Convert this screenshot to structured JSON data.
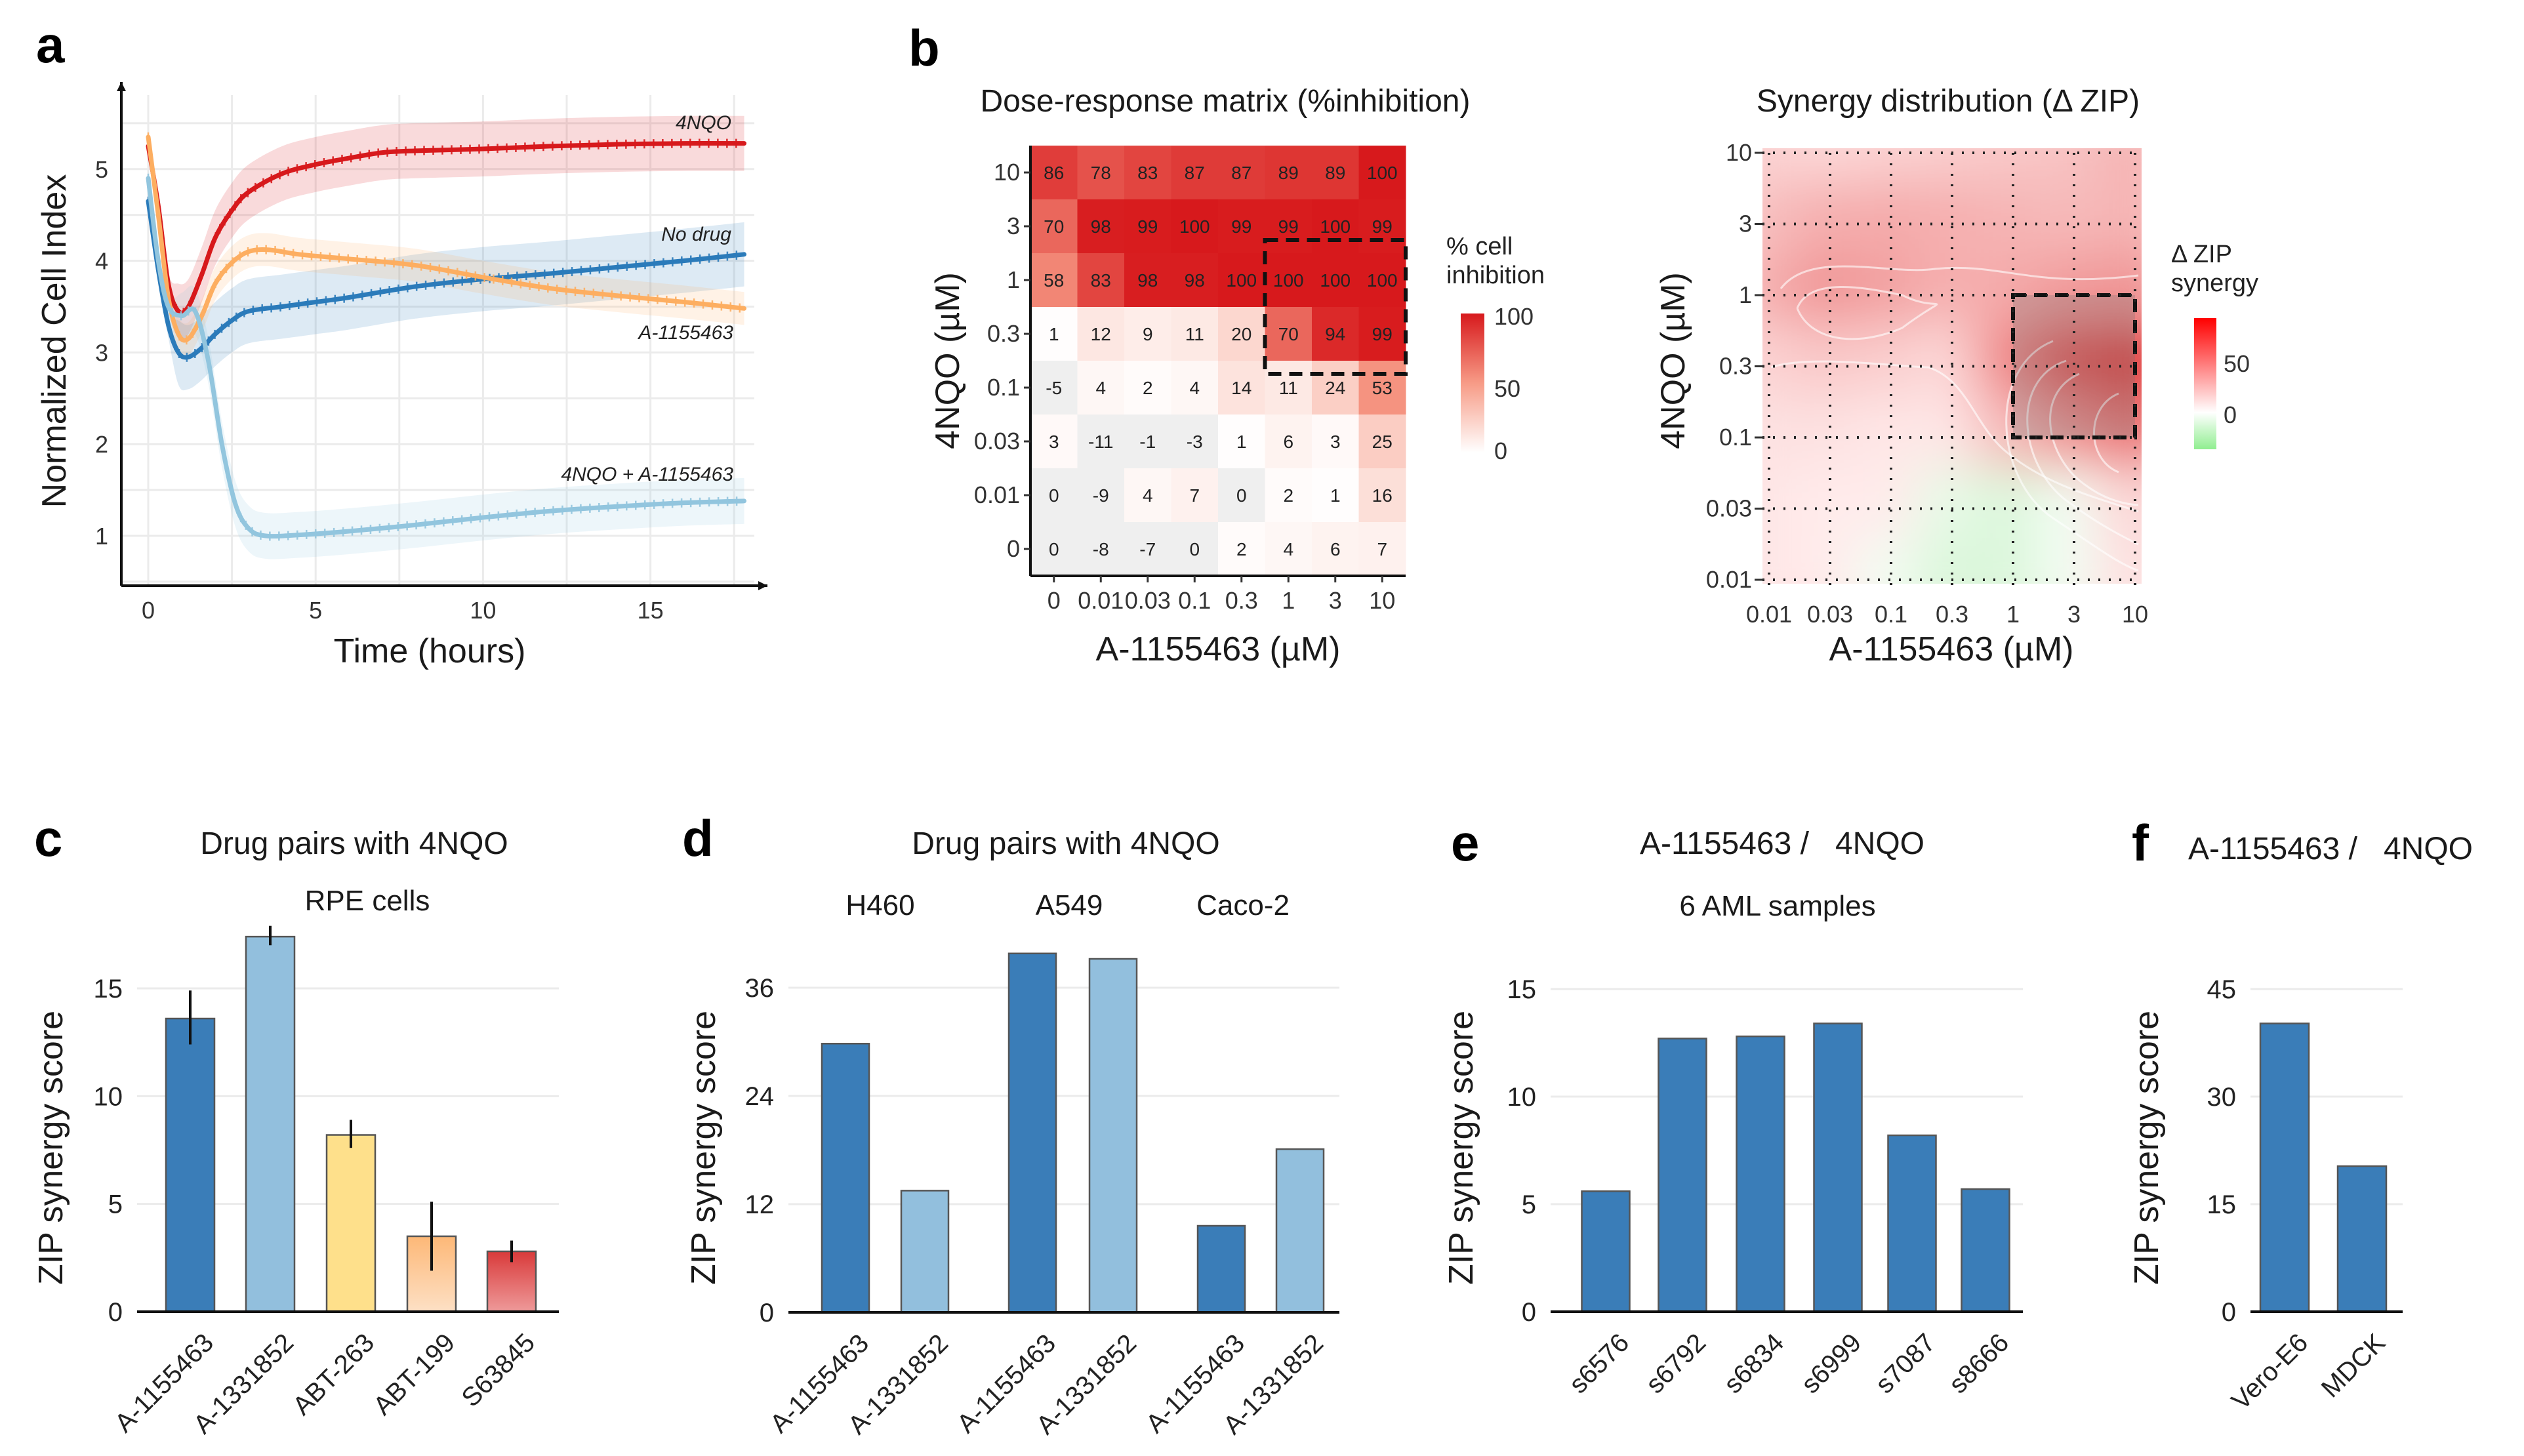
{
  "panels": {
    "a": {
      "letter": "a"
    },
    "b": {
      "letter": "b"
    },
    "c": {
      "letter": "c"
    },
    "d": {
      "letter": "d"
    },
    "e": {
      "letter": "e"
    },
    "f": {
      "letter": "f"
    }
  },
  "legends": {
    "inhibition": {
      "title_line1": "% cell",
      "title_line2": "inhibition",
      "ticks": [
        "100",
        "50",
        "0"
      ],
      "max_color": "#d7191c",
      "min_color": "#ffffff"
    },
    "synergy": {
      "title_line1": "Δ ZIP",
      "title_line2": "synergy",
      "ticks": [
        "50",
        "0"
      ],
      "max_color": "#ff0000",
      "min_color": "#90ee90"
    }
  },
  "chart_data": [
    {
      "id": "a",
      "type": "line",
      "title": "",
      "xlabel": "Time (hours)",
      "ylabel": "Normalized Cell Index",
      "xlim": [
        -0.7,
        18.5
      ],
      "ylim": [
        0.45,
        5.9
      ],
      "xticks": [
        0,
        5,
        10,
        15
      ],
      "yticks": [
        1,
        2,
        3,
        4,
        5
      ],
      "grid": true,
      "legend": "inline-labels",
      "series": [
        {
          "name": "4NQO",
          "color": "#d7191c",
          "x": [
            0,
            0.3,
            0.6,
            0.9,
            1.2,
            1.6,
            2.0,
            2.5,
            3,
            4,
            5,
            6,
            7,
            8,
            10,
            12,
            14,
            16,
            17.8
          ],
          "y": [
            5.25,
            4.6,
            3.75,
            3.45,
            3.5,
            3.85,
            4.25,
            4.55,
            4.75,
            4.95,
            5.05,
            5.12,
            5.18,
            5.2,
            5.22,
            5.25,
            5.27,
            5.28,
            5.28
          ],
          "band": 0.3
        },
        {
          "name": "No drug",
          "color": "#2b7bba",
          "x": [
            0,
            0.3,
            0.6,
            0.9,
            1.2,
            1.6,
            2.0,
            2.5,
            3,
            4,
            5,
            6,
            8,
            10,
            12,
            14,
            16,
            17.8
          ],
          "y": [
            4.65,
            3.9,
            3.3,
            3.0,
            2.95,
            3.05,
            3.2,
            3.35,
            3.45,
            3.5,
            3.55,
            3.6,
            3.72,
            3.8,
            3.86,
            3.93,
            4.0,
            4.07
          ],
          "band": 0.35
        },
        {
          "name": "A-1155463",
          "color": "#fdae61",
          "x": [
            0,
            0.3,
            0.6,
            0.9,
            1.2,
            1.6,
            2.0,
            2.5,
            3,
            3.6,
            4.5,
            6,
            8,
            10,
            12,
            14,
            16,
            17.8
          ],
          "y": [
            5.35,
            4.5,
            3.6,
            3.2,
            3.15,
            3.4,
            3.75,
            3.98,
            4.1,
            4.12,
            4.07,
            4.02,
            3.95,
            3.82,
            3.7,
            3.62,
            3.55,
            3.48
          ],
          "band": 0.18
        },
        {
          "name": "4NQO + A-1155463",
          "color": "#92c5de",
          "x": [
            0,
            0.3,
            0.6,
            1.0,
            1.4,
            1.8,
            2.2,
            2.6,
            3.0,
            3.5,
            4.5,
            6,
            8,
            10,
            12,
            14,
            16,
            17.8
          ],
          "y": [
            4.9,
            4.0,
            3.5,
            3.4,
            3.45,
            2.9,
            2.0,
            1.35,
            1.08,
            1.0,
            1.01,
            1.05,
            1.12,
            1.2,
            1.27,
            1.32,
            1.36,
            1.38
          ],
          "band": 0.25
        }
      ],
      "annotations": [
        "4NQO",
        "No drug",
        "A-1155463",
        "4NQO + A-1155463"
      ]
    },
    {
      "id": "b1",
      "type": "heatmap",
      "title": "Dose-response matrix (%inhibition)",
      "xlabel": "A-1155463 (µM)",
      "ylabel": "4NQO (µM)",
      "x_categories": [
        "0",
        "0.01",
        "0.03",
        "0.1",
        "0.3",
        "1",
        "3",
        "10"
      ],
      "y_categories": [
        "10",
        "3",
        "1",
        "0.3",
        "0.1",
        "0.03",
        "0.01",
        "0"
      ],
      "values": [
        [
          86,
          78,
          83,
          87,
          87,
          89,
          89,
          100
        ],
        [
          70,
          98,
          99,
          100,
          99,
          99,
          100,
          99
        ],
        [
          58,
          83,
          98,
          98,
          100,
          100,
          100,
          100
        ],
        [
          1,
          12,
          9,
          11,
          20,
          70,
          94,
          99
        ],
        [
          -5,
          4,
          2,
          4,
          14,
          11,
          24,
          53
        ],
        [
          3,
          -11,
          -1,
          -3,
          1,
          6,
          3,
          25
        ],
        [
          0,
          -9,
          4,
          7,
          0,
          2,
          1,
          16
        ],
        [
          0,
          -8,
          -7,
          0,
          2,
          4,
          6,
          7
        ]
      ],
      "colorbar": {
        "title": "% cell inhibition",
        "range": [
          0,
          100
        ],
        "ticks": [
          0,
          50,
          100
        ]
      },
      "highlight_box": {
        "x_from": "1",
        "x_to": "10",
        "y_from": "1",
        "y_to": "0.1"
      }
    },
    {
      "id": "b2",
      "type": "heatmap",
      "title": "Synergy distribution (Δ ZIP)",
      "xlabel": "A-1155463 (µM)",
      "ylabel": "4NQO (µM)",
      "x_categories": [
        "0.01",
        "0.03",
        "0.1",
        "0.3",
        "1",
        "3",
        "10"
      ],
      "y_categories": [
        "10",
        "3",
        "1",
        "0.3",
        "0.1",
        "0.03",
        "0.01"
      ],
      "values": [
        [
          10,
          8,
          10,
          12,
          14,
          16,
          22
        ],
        [
          18,
          24,
          26,
          24,
          22,
          20,
          22
        ],
        [
          24,
          34,
          30,
          24,
          26,
          32,
          34
        ],
        [
          10,
          14,
          12,
          8,
          40,
          62,
          72
        ],
        [
          4,
          4,
          2,
          2,
          20,
          36,
          48
        ],
        [
          2,
          0,
          0,
          -4,
          -6,
          -2,
          8
        ],
        [
          2,
          0,
          -2,
          -6,
          -6,
          -2,
          4
        ]
      ],
      "colorbar": {
        "title": "Δ ZIP synergy",
        "range": [
          -15,
          80
        ],
        "ticks": [
          0,
          50
        ]
      },
      "highlight_box": {
        "x_from": "1",
        "x_to": "10",
        "y_from": "1",
        "y_to": "0.1"
      },
      "grid": "dotted"
    },
    {
      "id": "c",
      "type": "bar",
      "title": "Drug pairs with 4NQO",
      "subtitle": "RPE cells",
      "xlabel": "",
      "ylabel": "ZIP synergy score",
      "ylim": [
        0,
        18
      ],
      "yticks": [
        0,
        5,
        10,
        15
      ],
      "categories": [
        "A-1155463",
        "A-1331852",
        "ABT-263",
        "ABT-199",
        "S63845"
      ],
      "values": [
        13.6,
        17.4,
        8.2,
        3.5,
        2.8
      ],
      "errors_low": [
        12.4,
        17.0,
        7.6,
        1.9,
        2.3
      ],
      "errors_high": [
        14.9,
        17.9,
        8.9,
        5.1,
        3.3
      ],
      "colors": [
        "#3a7db8",
        "#92bfdd",
        "#fee08b",
        "#fdc48f",
        "#e05c5c"
      ]
    },
    {
      "id": "d",
      "type": "bar",
      "title": "Drug pairs with 4NQO",
      "groups": [
        "H460",
        "A549",
        "Caco-2"
      ],
      "xlabel": "",
      "ylabel": "ZIP synergy score",
      "ylim": [
        0,
        42
      ],
      "yticks": [
        0,
        12,
        24,
        36
      ],
      "categories": [
        "A-1155463",
        "A-1331852",
        "A-1155463",
        "A-1331852",
        "A-1155463",
        "A-1331852"
      ],
      "values": [
        29.8,
        13.5,
        39.8,
        39.2,
        9.6,
        18.1
      ],
      "colors": [
        "#3a7db8",
        "#92bfdd",
        "#3a7db8",
        "#92bfdd",
        "#3a7db8",
        "#92bfdd"
      ]
    },
    {
      "id": "e",
      "type": "bar",
      "title": "A-1155463 /   4NQO",
      "subtitle": "6 AML samples",
      "xlabel": "",
      "ylabel": "ZIP synergy score",
      "ylim": [
        0,
        16
      ],
      "yticks": [
        0,
        5,
        10,
        15
      ],
      "categories": [
        "s6576",
        "s6792",
        "s6834",
        "s6999",
        "s7087",
        "s8666"
      ],
      "values": [
        5.6,
        12.7,
        12.8,
        13.4,
        8.2,
        5.7
      ],
      "colors": [
        "#3a7db8",
        "#3a7db8",
        "#3a7db8",
        "#3a7db8",
        "#3a7db8",
        "#3a7db8"
      ]
    },
    {
      "id": "f",
      "type": "bar",
      "title": "A-1155463 /   4NQO",
      "xlabel": "",
      "ylabel": "ZIP synergy score",
      "ylim": [
        0,
        47
      ],
      "yticks": [
        0,
        15,
        30,
        45
      ],
      "categories": [
        "Vero-E6",
        "MDCK"
      ],
      "values": [
        40.2,
        20.3
      ],
      "colors": [
        "#3a7db8",
        "#3a7db8"
      ]
    }
  ]
}
